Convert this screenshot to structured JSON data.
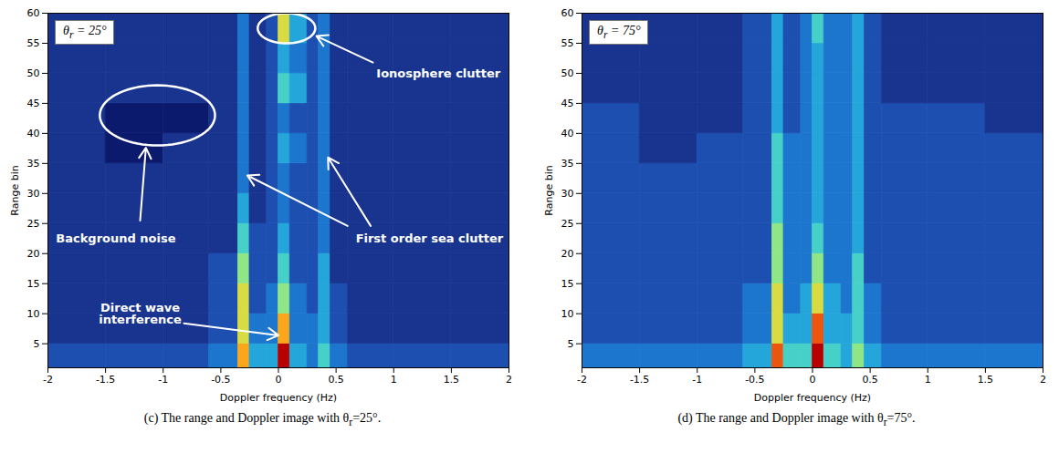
{
  "chart_data": [
    {
      "type": "heatmap",
      "caption": "(c) The range and Doppler image with θr=25°.",
      "inset_label": "θr = 25°",
      "x_label": "Doppler frequency (Hz)",
      "y_label": "Range bin",
      "xlim": [
        -2,
        2
      ],
      "xticks": [
        -2,
        -1.5,
        -1,
        -0.5,
        0,
        0.5,
        1,
        1.5,
        2
      ],
      "ylim": [
        1,
        60
      ],
      "yticks": [
        5,
        10,
        15,
        20,
        25,
        30,
        35,
        40,
        45,
        50,
        55,
        60
      ],
      "doppler_edges": [
        -2,
        -1.5,
        -1,
        -0.6,
        -0.35,
        -0.25,
        -0.1,
        0,
        0.1,
        0.25,
        0.35,
        0.45,
        0.6,
        1,
        1.5,
        2
      ],
      "range_edges": [
        1,
        5,
        10,
        15,
        20,
        25,
        30,
        35,
        40,
        45,
        50,
        55,
        60
      ],
      "cells": [
        [
          2,
          2,
          2,
          3,
          8,
          4,
          4,
          10,
          4,
          3,
          5,
          3,
          2,
          2,
          2
        ],
        [
          1,
          1,
          1,
          2,
          7,
          3,
          3,
          8,
          3,
          3,
          4,
          2,
          1,
          1,
          1
        ],
        [
          1,
          1,
          1,
          2,
          7,
          2,
          3,
          6,
          3,
          2,
          4,
          2,
          1,
          1,
          1
        ],
        [
          1,
          1,
          1,
          2,
          6,
          2,
          2,
          5,
          2,
          2,
          4,
          1,
          1,
          1,
          1
        ],
        [
          1,
          1,
          1,
          1,
          5,
          2,
          2,
          4,
          2,
          2,
          3,
          1,
          1,
          1,
          1
        ],
        [
          1,
          1,
          1,
          1,
          4,
          1,
          2,
          3,
          2,
          2,
          3,
          1,
          1,
          1,
          1
        ],
        [
          1,
          1,
          1,
          1,
          3,
          1,
          2,
          3,
          2,
          2,
          3,
          1,
          1,
          1,
          1
        ],
        [
          1,
          0,
          1,
          1,
          3,
          1,
          2,
          4,
          3,
          2,
          3,
          1,
          1,
          1,
          1
        ],
        [
          1,
          0,
          0,
          1,
          3,
          1,
          2,
          3,
          2,
          2,
          3,
          1,
          1,
          1,
          1
        ],
        [
          1,
          1,
          1,
          1,
          3,
          1,
          2,
          5,
          4,
          2,
          3,
          1,
          1,
          1,
          1
        ],
        [
          1,
          1,
          1,
          1,
          3,
          1,
          2,
          4,
          3,
          2,
          3,
          1,
          1,
          1,
          1
        ],
        [
          1,
          1,
          1,
          1,
          3,
          1,
          2,
          7,
          4,
          2,
          3,
          1,
          1,
          1,
          1
        ]
      ],
      "annotations": [
        {
          "text": "Background noise"
        },
        {
          "text": "Ionosphere clutter"
        },
        {
          "text": "First order sea clutter"
        },
        {
          "text": "Direct wave interference"
        }
      ]
    },
    {
      "type": "heatmap",
      "caption": "(d) The range and Doppler image with θr=75°.",
      "inset_label": "θr = 75°",
      "x_label": "Doppler frequency (Hz)",
      "y_label": "Range bin",
      "xlim": [
        -2,
        2
      ],
      "xticks": [
        -2,
        -1.5,
        -1,
        -0.5,
        0,
        0.5,
        1,
        1.5,
        2
      ],
      "ylim": [
        1,
        60
      ],
      "yticks": [
        5,
        10,
        15,
        20,
        25,
        30,
        35,
        40,
        45,
        50,
        55,
        60
      ],
      "doppler_edges": [
        -2,
        -1.5,
        -1,
        -0.6,
        -0.35,
        -0.25,
        -0.1,
        0,
        0.1,
        0.25,
        0.35,
        0.45,
        0.6,
        1,
        1.5,
        2
      ],
      "range_edges": [
        1,
        5,
        10,
        15,
        20,
        25,
        30,
        35,
        40,
        45,
        50,
        55,
        60
      ],
      "cells": [
        [
          3,
          3,
          3,
          4,
          9,
          5,
          5,
          10,
          5,
          4,
          6,
          4,
          3,
          3,
          3
        ],
        [
          2,
          2,
          2,
          3,
          7,
          4,
          4,
          9,
          4,
          4,
          5,
          3,
          2,
          2,
          2
        ],
        [
          2,
          2,
          2,
          3,
          7,
          3,
          4,
          7,
          4,
          3,
          5,
          3,
          2,
          2,
          2
        ],
        [
          2,
          2,
          2,
          2,
          6,
          3,
          3,
          6,
          3,
          3,
          5,
          2,
          2,
          2,
          2
        ],
        [
          2,
          2,
          2,
          2,
          6,
          3,
          3,
          5,
          3,
          3,
          4,
          2,
          2,
          2,
          2
        ],
        [
          2,
          2,
          2,
          2,
          5,
          3,
          3,
          4,
          3,
          3,
          4,
          2,
          2,
          2,
          2
        ],
        [
          2,
          2,
          2,
          2,
          5,
          3,
          3,
          4,
          3,
          3,
          4,
          2,
          2,
          2,
          2
        ],
        [
          2,
          1,
          2,
          2,
          5,
          3,
          3,
          4,
          3,
          3,
          4,
          2,
          2,
          2,
          2
        ],
        [
          2,
          1,
          1,
          2,
          4,
          2,
          3,
          4,
          3,
          3,
          4,
          2,
          2,
          2,
          1
        ],
        [
          1,
          1,
          1,
          2,
          4,
          2,
          3,
          4,
          3,
          3,
          4,
          2,
          1,
          1,
          1
        ],
        [
          1,
          1,
          1,
          2,
          4,
          2,
          3,
          4,
          3,
          3,
          4,
          2,
          1,
          1,
          1
        ],
        [
          1,
          1,
          1,
          2,
          4,
          2,
          3,
          5,
          3,
          3,
          4,
          2,
          1,
          1,
          1
        ]
      ]
    }
  ]
}
